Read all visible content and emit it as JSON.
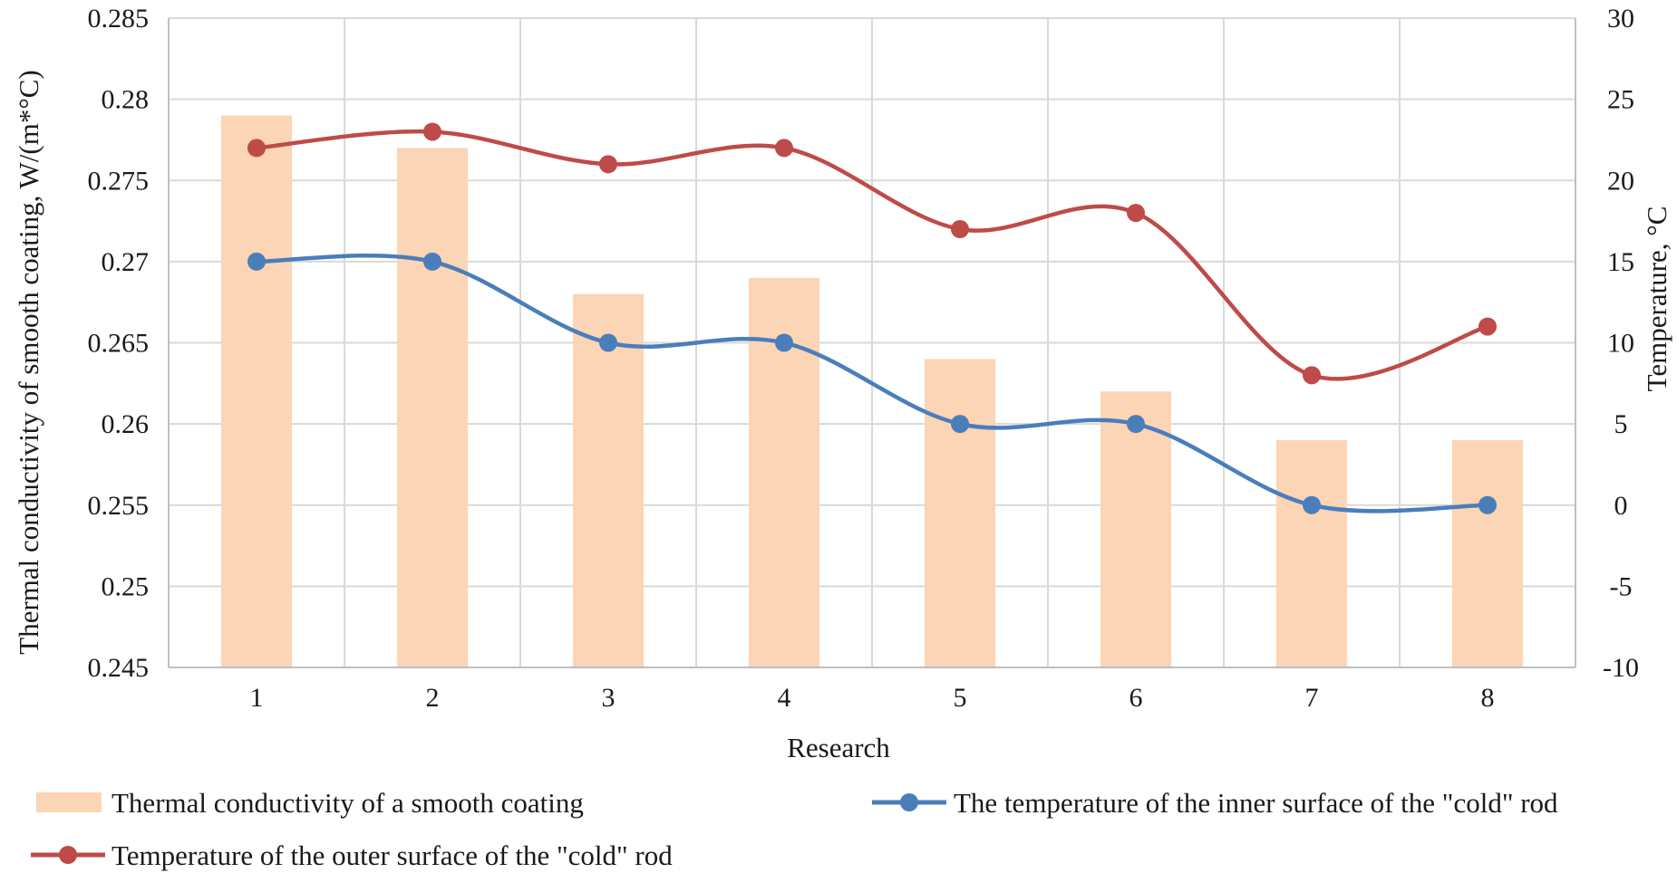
{
  "chart_data": {
    "type": "bar+line",
    "categories": [
      "1",
      "2",
      "3",
      "4",
      "5",
      "6",
      "7",
      "8"
    ],
    "xlabel": "Research",
    "ylabel_left": "Thermal conductivity of smooth coating, W/(m*°C)",
    "ylabel_right": "Temperature, °C",
    "ylim_left": [
      0.245,
      0.285
    ],
    "yticks_left": [
      "0.245",
      "0.25",
      "0.255",
      "0.26",
      "0.265",
      "0.27",
      "0.275",
      "0.28",
      "0.285"
    ],
    "ylim_right": [
      -10,
      30
    ],
    "yticks_right": [
      "-10",
      "-5",
      "0",
      "5",
      "10",
      "15",
      "20",
      "25",
      "30"
    ],
    "grid": true,
    "series": [
      {
        "name": "Thermal conductivity of a smooth coating",
        "kind": "bar",
        "axis": "left",
        "color": "#FBD5B5",
        "values": [
          0.279,
          0.277,
          0.268,
          0.269,
          0.264,
          0.262,
          0.259,
          0.259
        ]
      },
      {
        "name": "The temperature of the inner surface of the \"cold\" rod",
        "kind": "line",
        "axis": "right",
        "color": "#4A7EBB",
        "values": [
          15,
          15,
          10,
          10,
          5,
          5,
          0,
          0
        ]
      },
      {
        "name": "Temperature of the outer surface of the \"cold\" rod",
        "kind": "line",
        "axis": "right",
        "color": "#BE4B48",
        "values": [
          22,
          23,
          21,
          22,
          17,
          18,
          8,
          11
        ]
      }
    ],
    "legend_position": "bottom"
  }
}
